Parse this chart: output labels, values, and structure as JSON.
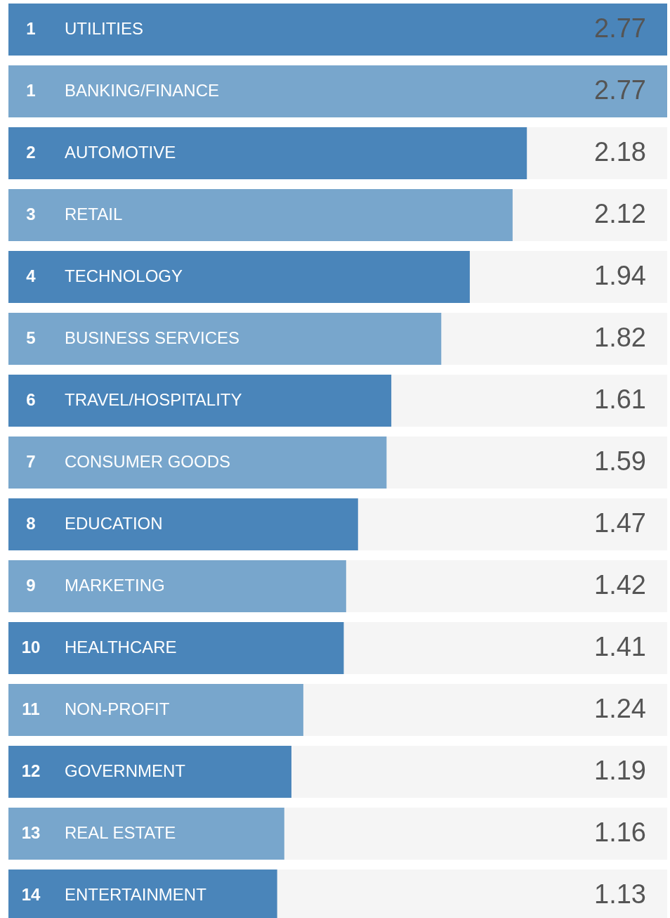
{
  "chart_data": {
    "type": "bar",
    "orientation": "horizontal",
    "categories": [
      "UTILITIES",
      "BANKING/FINANCE",
      "AUTOMOTIVE",
      "RETAIL",
      "TECHNOLOGY",
      "BUSINESS SERVICES",
      "TRAVEL/HOSPITALITY",
      "CONSUMER GOODS",
      "EDUCATION",
      "MARKETING",
      "HEALTHCARE",
      "NON-PROFIT",
      "GOVERNMENT",
      "REAL ESTATE",
      "ENTERTAINMENT"
    ],
    "values": [
      2.77,
      2.77,
      2.18,
      2.12,
      1.94,
      1.82,
      1.61,
      1.59,
      1.47,
      1.42,
      1.41,
      1.24,
      1.19,
      1.16,
      1.13
    ],
    "colors": [
      "#4a85ba",
      "#78a6cc",
      "#4a85ba",
      "#78a6cc",
      "#4a85ba",
      "#78a6cc",
      "#4a85ba",
      "#78a6cc",
      "#4a85ba",
      "#78a6cc",
      "#4a85ba",
      "#78a6cc",
      "#4a85ba",
      "#78a6cc",
      "#4a85ba"
    ],
    "xlim": [
      0,
      2.77
    ],
    "data_labels": true,
    "grid": false,
    "annotations": [
      {
        "text": "1",
        "y": "UTILITIES"
      },
      {
        "text": "1",
        "y": "BANKING/FINANCE"
      },
      {
        "text": "2",
        "y": "AUTOMOTIVE"
      },
      {
        "text": "3",
        "y": "RETAIL"
      },
      {
        "text": "4",
        "y": "TECHNOLOGY"
      },
      {
        "text": "5",
        "y": "BUSINESS SERVICES"
      },
      {
        "text": "6",
        "y": "TRAVEL/HOSPITALITY"
      },
      {
        "text": "7",
        "y": "CONSUMER GOODS"
      },
      {
        "text": "8",
        "y": "EDUCATION"
      },
      {
        "text": "9",
        "y": "MARKETING"
      },
      {
        "text": "10",
        "y": "HEALTHCARE"
      },
      {
        "text": "11",
        "y": "NON-PROFIT"
      },
      {
        "text": "12",
        "y": "GOVERNMENT"
      },
      {
        "text": "13",
        "y": "REAL ESTATE"
      },
      {
        "text": "14",
        "y": "ENTERTAINMENT"
      }
    ]
  }
}
